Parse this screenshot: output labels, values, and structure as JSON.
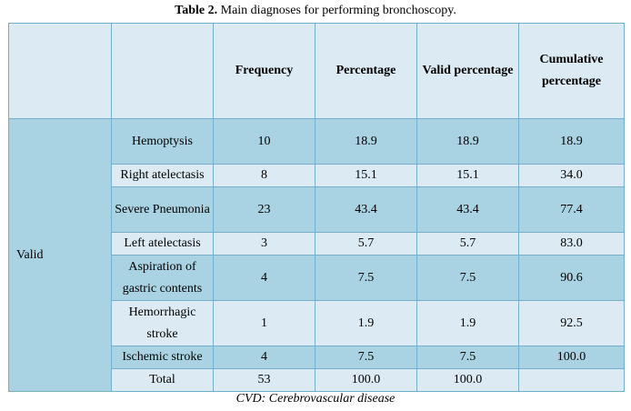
{
  "caption": {
    "label": "Table 2.",
    "text": "Main diagnoses for performing bronchoscopy."
  },
  "table": {
    "group_label": "Valid",
    "headers": [
      "",
      "",
      "Frequency",
      "Percentage",
      "Valid percentage",
      "Cumulative percentage"
    ],
    "rows": [
      {
        "diagnosis": "Hemoptysis",
        "frequency": "10",
        "percentage": "18.9",
        "valid_percentage": "18.9",
        "cumulative_percentage": "18.9"
      },
      {
        "diagnosis": "Right atelectasis",
        "frequency": "8",
        "percentage": "15.1",
        "valid_percentage": "15.1",
        "cumulative_percentage": "34.0"
      },
      {
        "diagnosis": "Severe Pneumonia",
        "frequency": "23",
        "percentage": "43.4",
        "valid_percentage": "43.4",
        "cumulative_percentage": "77.4"
      },
      {
        "diagnosis": "Left atelectasis",
        "frequency": "3",
        "percentage": "5.7",
        "valid_percentage": "5.7",
        "cumulative_percentage": "83.0"
      },
      {
        "diagnosis": "Aspiration of gastric contents",
        "frequency": "4",
        "percentage": "7.5",
        "valid_percentage": "7.5",
        "cumulative_percentage": "90.6"
      },
      {
        "diagnosis": "Hemorrhagic stroke",
        "frequency": "1",
        "percentage": "1.9",
        "valid_percentage": "1.9",
        "cumulative_percentage": "92.5"
      },
      {
        "diagnosis": "Ischemic stroke",
        "frequency": "4",
        "percentage": "7.5",
        "valid_percentage": "7.5",
        "cumulative_percentage": "100.0"
      },
      {
        "diagnosis": "Total",
        "frequency": "53",
        "percentage": "100.0",
        "valid_percentage": "100.0",
        "cumulative_percentage": ""
      }
    ]
  },
  "footnote": "CVD: Cerebrovascular disease",
  "colors": {
    "dark_row": "#a9d2e2",
    "light_row": "#dcebf3",
    "border": "#77aec9"
  }
}
